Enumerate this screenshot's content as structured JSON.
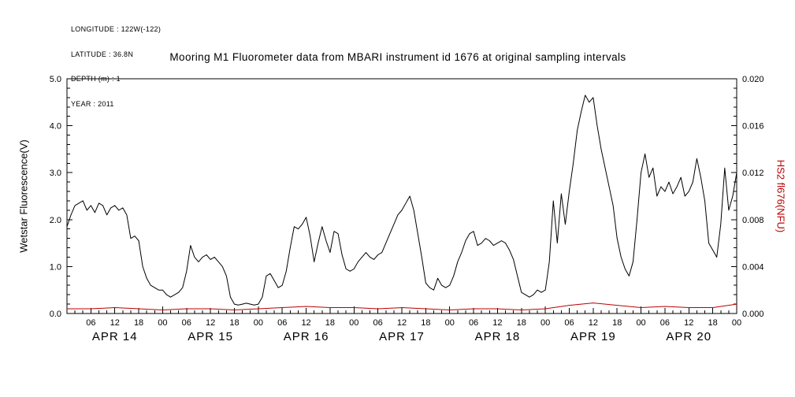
{
  "meta": {
    "lines": [
      "LONGITUDE : 122W(-122)",
      "LATITUDE : 36.8N",
      "DEPTH (m) : 1",
      "YEAR : 2011"
    ]
  },
  "title": "Mooring M1 Fluorometer data from MBARI instrument id 1676 at original sampling intervals",
  "colors": {
    "background": "#ffffff",
    "axis": "#000000",
    "primary_series": "#000000",
    "secondary_series": "#bb0000"
  },
  "chart_data": {
    "type": "line",
    "title": "Mooring M1 Fluorometer data from MBARI instrument id 1676 at original sampling intervals",
    "grid": false,
    "legend": "none",
    "left_axis": {
      "label": "Wetstar Fluorescence(V)",
      "range": [
        0.0,
        5.0
      ],
      "ticks": [
        "0.0",
        "1.0",
        "2.0",
        "3.0",
        "4.0",
        "5.0"
      ],
      "minor_step": 0.2,
      "color": "#000000"
    },
    "right_axis": {
      "label": "HS2 fl676(NFU)",
      "range": [
        0.0,
        0.02
      ],
      "ticks": [
        "0.000",
        "0.004",
        "0.008",
        "0.012",
        "0.016",
        "0.020"
      ],
      "color": "#bb0000"
    },
    "x_axis": {
      "range_hours": [
        0,
        168
      ],
      "hour_tick_interval": 6,
      "minor_tick_interval": 2,
      "hour_labels": [
        "06",
        "12",
        "18",
        "00",
        "06",
        "12",
        "18",
        "00",
        "06",
        "12",
        "18",
        "00",
        "06",
        "12",
        "18",
        "00",
        "06",
        "12",
        "18",
        "00",
        "06",
        "12",
        "18",
        "00",
        "06",
        "12",
        "18",
        "00"
      ],
      "day_labels": [
        "APR 14",
        "APR 15",
        "APR 16",
        "APR 17",
        "APR 18",
        "APR 19",
        "APR 20"
      ]
    },
    "series": [
      {
        "name": "Wetstar Fluorescence(V)",
        "axis": "left",
        "color": "#000000",
        "x_start_hour": 0,
        "x_step_hours": 1,
        "values": [
          1.85,
          2.1,
          2.3,
          2.35,
          2.4,
          2.2,
          2.3,
          2.15,
          2.35,
          2.3,
          2.1,
          2.25,
          2.3,
          2.2,
          2.25,
          2.1,
          1.6,
          1.65,
          1.55,
          1.0,
          0.75,
          0.6,
          0.55,
          0.5,
          0.5,
          0.4,
          0.35,
          0.4,
          0.45,
          0.55,
          0.9,
          1.45,
          1.2,
          1.1,
          1.2,
          1.25,
          1.15,
          1.2,
          1.1,
          1.0,
          0.8,
          0.35,
          0.2,
          0.18,
          0.2,
          0.22,
          0.2,
          0.18,
          0.2,
          0.35,
          0.8,
          0.85,
          0.7,
          0.55,
          0.6,
          0.9,
          1.4,
          1.85,
          1.8,
          1.9,
          2.05,
          1.65,
          1.1,
          1.5,
          1.85,
          1.55,
          1.3,
          1.75,
          1.7,
          1.25,
          0.95,
          0.9,
          0.95,
          1.1,
          1.2,
          1.3,
          1.2,
          1.15,
          1.25,
          1.3,
          1.5,
          1.7,
          1.9,
          2.1,
          2.2,
          2.35,
          2.5,
          2.2,
          1.7,
          1.2,
          0.65,
          0.55,
          0.5,
          0.75,
          0.6,
          0.55,
          0.6,
          0.8,
          1.1,
          1.3,
          1.55,
          1.7,
          1.75,
          1.45,
          1.5,
          1.6,
          1.55,
          1.45,
          1.5,
          1.55,
          1.5,
          1.35,
          1.15,
          0.8,
          0.45,
          0.4,
          0.35,
          0.4,
          0.5,
          0.45,
          0.5,
          1.1,
          2.4,
          1.5,
          2.55,
          1.9,
          2.6,
          3.2,
          3.9,
          4.3,
          4.65,
          4.5,
          4.6,
          4.0,
          3.5,
          3.1,
          2.7,
          2.3,
          1.6,
          1.2,
          0.95,
          0.8,
          1.1,
          2.0,
          3.0,
          3.4,
          2.9,
          3.1,
          2.5,
          2.7,
          2.6,
          2.8,
          2.55,
          2.7,
          2.9,
          2.5,
          2.6,
          2.8,
          3.3,
          2.9,
          2.4,
          1.5,
          1.35,
          1.2,
          1.9,
          3.1,
          2.2,
          2.5,
          3.0
        ]
      },
      {
        "name": "HS2 fl676(NFU)",
        "axis": "right",
        "color": "#bb0000",
        "x_start_hour": 0,
        "x_step_hours": 6,
        "values": [
          0.0004,
          0.0004,
          0.0005,
          0.0004,
          0.0003,
          0.0004,
          0.0004,
          0.0003,
          0.0004,
          0.0005,
          0.0006,
          0.0005,
          0.0005,
          0.0004,
          0.0005,
          0.0004,
          0.0003,
          0.0004,
          0.0004,
          0.0003,
          0.0004,
          0.0007,
          0.0009,
          0.0007,
          0.0005,
          0.0006,
          0.0005,
          0.0005,
          0.0008
        ]
      }
    ]
  }
}
